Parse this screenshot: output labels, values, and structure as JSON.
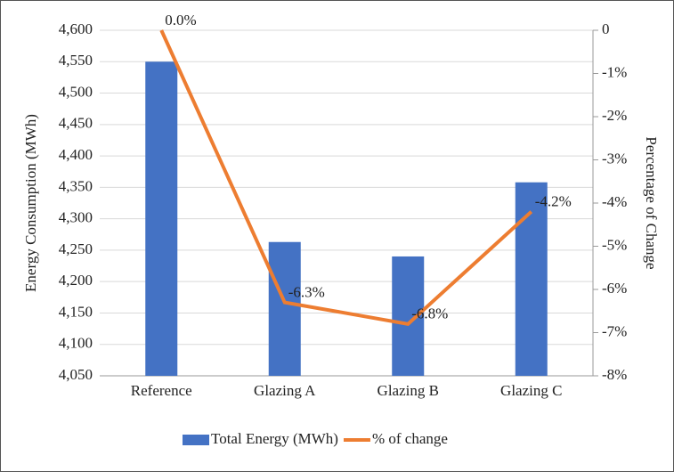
{
  "chart_data": {
    "type": "bar",
    "categories": [
      "Reference",
      "Glazing A",
      "Glazing B",
      "Glazing C"
    ],
    "series": [
      {
        "name": "Total Energy (MWh)",
        "color": "#4472c4",
        "type": "bar",
        "values": [
          4550,
          4263,
          4240,
          4358
        ]
      },
      {
        "name": "% of change",
        "color": "#ed7d31",
        "type": "line",
        "axis": "y2",
        "values": [
          0.0,
          -6.3,
          -6.8,
          -4.2
        ],
        "value_labels": [
          "0.0%",
          "-6.3%",
          "-6.8%",
          "-4.2%"
        ]
      }
    ],
    "ylabel": "Energy Consumption (MWh)",
    "y2label": "Percentage of Change",
    "ylim": [
      4050,
      4600
    ],
    "yticks": [
      {
        "value": 4050,
        "label": "4,050"
      },
      {
        "value": 4100,
        "label": "4,100"
      },
      {
        "value": 4150,
        "label": "4,150"
      },
      {
        "value": 4200,
        "label": "4,200"
      },
      {
        "value": 4250,
        "label": "4,250"
      },
      {
        "value": 4300,
        "label": "4,300"
      },
      {
        "value": 4350,
        "label": "4,350"
      },
      {
        "value": 4400,
        "label": "4,400"
      },
      {
        "value": 4450,
        "label": "4,450"
      },
      {
        "value": 4500,
        "label": "4,500"
      },
      {
        "value": 4550,
        "label": "4,550"
      },
      {
        "value": 4600,
        "label": "4,600"
      }
    ],
    "y2lim": [
      -8,
      0
    ],
    "y2ticks": [
      0,
      {
        "value": -1,
        "label": "-1%"
      },
      {
        "value": -2,
        "label": "-2%"
      },
      {
        "value": -3,
        "label": "-3%"
      },
      {
        "value": -4,
        "label": "-4%"
      },
      {
        "value": -5,
        "label": "-5%"
      },
      {
        "value": -6,
        "label": "-6%"
      },
      {
        "value": -7,
        "label": "-7%"
      },
      {
        "value": -8,
        "label": "-8%"
      }
    ],
    "grid": true,
    "legend": "bottom"
  }
}
